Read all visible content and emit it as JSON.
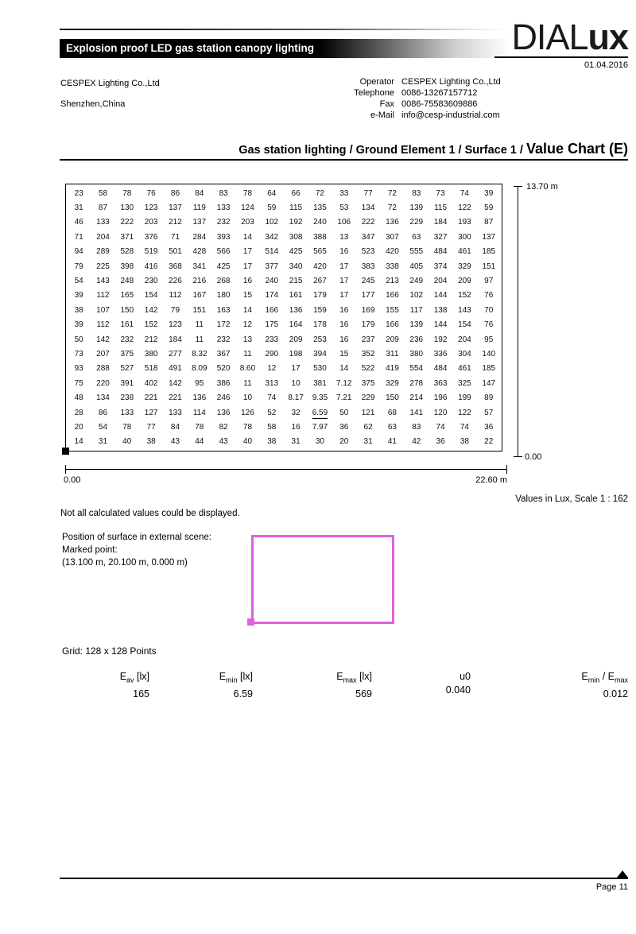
{
  "page": {
    "bar_title": "Explosion proof LED gas station canopy lighting",
    "logo_dial": "DIAL",
    "logo_ux": "ux",
    "date": "01.04.2016",
    "page_number": "Page 11"
  },
  "company": {
    "name": "CESPEX Lighting Co.,Ltd",
    "city": "Shenzhen,China"
  },
  "contact": {
    "rows": [
      {
        "label": "Operator",
        "value": "CESPEX Lighting Co.,Ltd"
      },
      {
        "label": "Telephone",
        "value": "0086-13267157712"
      },
      {
        "label": "Fax",
        "value": "0086-75583609886"
      },
      {
        "label": "e-Mail",
        "value": "info@cesp-industrial.com"
      }
    ]
  },
  "title": {
    "breadcrumb": "Gas station lighting / Ground Element 1 / Surface 1 / ",
    "emphasis": "Value Chart (E)"
  },
  "chart_data": {
    "type": "heatmap",
    "title": "Value Chart (E)",
    "unit": "Lux",
    "scale_note": "Values in Lux, Scale 1 : 162",
    "x_axis": {
      "start_label": "0.00",
      "end_label": "22.60 m"
    },
    "y_axis": {
      "start_label": "0.00",
      "end_label": "13.70 m"
    },
    "min_value": "6.59",
    "min_cell": {
      "row": 15,
      "col": 10
    },
    "rows": [
      [
        "23",
        "58",
        "78",
        "76",
        "86",
        "84",
        "83",
        "78",
        "64",
        "66",
        "72",
        "33",
        "77",
        "72",
        "83",
        "73",
        "74",
        "39"
      ],
      [
        "31",
        "87",
        "130",
        "123",
        "137",
        "119",
        "133",
        "124",
        "59",
        "115",
        "135",
        "53",
        "134",
        "72",
        "139",
        "115",
        "122",
        "59"
      ],
      [
        "46",
        "133",
        "222",
        "203",
        "212",
        "137",
        "232",
        "203",
        "102",
        "192",
        "240",
        "106",
        "222",
        "136",
        "229",
        "184",
        "193",
        "87"
      ],
      [
        "71",
        "204",
        "371",
        "376",
        "71",
        "284",
        "393",
        "14",
        "342",
        "308",
        "388",
        "13",
        "347",
        "307",
        "63",
        "327",
        "300",
        "137"
      ],
      [
        "94",
        "289",
        "528",
        "519",
        "501",
        "428",
        "566",
        "17",
        "514",
        "425",
        "565",
        "16",
        "523",
        "420",
        "555",
        "484",
        "461",
        "185"
      ],
      [
        "79",
        "225",
        "398",
        "416",
        "368",
        "341",
        "425",
        "17",
        "377",
        "340",
        "420",
        "17",
        "383",
        "338",
        "405",
        "374",
        "329",
        "151"
      ],
      [
        "54",
        "143",
        "248",
        "230",
        "226",
        "216",
        "268",
        "16",
        "240",
        "215",
        "267",
        "17",
        "245",
        "213",
        "249",
        "204",
        "209",
        "97"
      ],
      [
        "39",
        "112",
        "165",
        "154",
        "112",
        "167",
        "180",
        "15",
        "174",
        "161",
        "179",
        "17",
        "177",
        "166",
        "102",
        "144",
        "152",
        "76"
      ],
      [
        "38",
        "107",
        "150",
        "142",
        "79",
        "151",
        "163",
        "14",
        "166",
        "136",
        "159",
        "16",
        "169",
        "155",
        "117",
        "138",
        "143",
        "70"
      ],
      [
        "39",
        "112",
        "161",
        "152",
        "123",
        "11",
        "172",
        "12",
        "175",
        "164",
        "178",
        "16",
        "179",
        "166",
        "139",
        "144",
        "154",
        "76"
      ],
      [
        "50",
        "142",
        "232",
        "212",
        "184",
        "11",
        "232",
        "13",
        "233",
        "209",
        "253",
        "16",
        "237",
        "209",
        "236",
        "192",
        "204",
        "95"
      ],
      [
        "73",
        "207",
        "375",
        "380",
        "277",
        "8.32",
        "367",
        "11",
        "290",
        "198",
        "394",
        "15",
        "352",
        "311",
        "380",
        "336",
        "304",
        "140"
      ],
      [
        "93",
        "288",
        "527",
        "518",
        "491",
        "8.09",
        "520",
        "8.60",
        "12",
        "17",
        "530",
        "14",
        "522",
        "419",
        "554",
        "484",
        "461",
        "185"
      ],
      [
        "75",
        "220",
        "391",
        "402",
        "142",
        "95",
        "386",
        "11",
        "313",
        "10",
        "381",
        "7.12",
        "375",
        "329",
        "278",
        "363",
        "325",
        "147"
      ],
      [
        "48",
        "134",
        "238",
        "221",
        "221",
        "136",
        "246",
        "10",
        "74",
        "8.17",
        "9.35",
        "7.21",
        "229",
        "150",
        "214",
        "196",
        "199",
        "89"
      ],
      [
        "28",
        "86",
        "133",
        "127",
        "133",
        "114",
        "136",
        "126",
        "52",
        "32",
        "6.59",
        "50",
        "121",
        "68",
        "141",
        "120",
        "122",
        "57"
      ],
      [
        "20",
        "54",
        "78",
        "77",
        "84",
        "78",
        "82",
        "78",
        "58",
        "16",
        "7.97",
        "36",
        "62",
        "63",
        "83",
        "74",
        "74",
        "36"
      ],
      [
        "14",
        "31",
        "40",
        "38",
        "43",
        "44",
        "43",
        "40",
        "38",
        "31",
        "30",
        "20",
        "31",
        "41",
        "42",
        "36",
        "38",
        "22"
      ]
    ]
  },
  "notes": {
    "not_all_values": "Not all calculated values could be displayed.",
    "position_line1": "Position of surface in external scene:",
    "position_line2": "Marked point:",
    "position_line3": "(13.100 m, 20.100 m, 0.000 m)",
    "grid_info": "Grid: 128 x 128 Points"
  },
  "colors": {
    "marked_rect": "#e060e0"
  },
  "summary": {
    "columns": [
      {
        "header": [
          {
            "t": "E"
          },
          {
            "s": "av"
          },
          {
            "t": " [lx]"
          }
        ],
        "value": "165"
      },
      {
        "header": [
          {
            "t": "E"
          },
          {
            "s": "min"
          },
          {
            "t": " [lx]"
          }
        ],
        "value": "6.59"
      },
      {
        "header": [
          {
            "t": "E"
          },
          {
            "s": "max"
          },
          {
            "t": " [lx]"
          }
        ],
        "value": "569"
      },
      {
        "header": [
          {
            "t": "u0"
          }
        ],
        "value": "0.040"
      },
      {
        "header": [
          {
            "t": "E"
          },
          {
            "s": "min"
          },
          {
            "t": " / E"
          },
          {
            "s": "max"
          }
        ],
        "value": "0.012"
      }
    ]
  }
}
